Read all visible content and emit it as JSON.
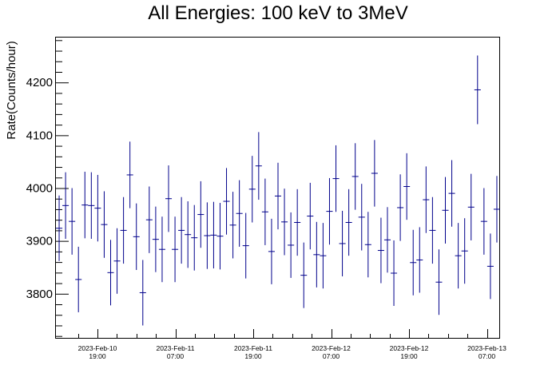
{
  "chart_data": {
    "type": "scatter",
    "title": "All Energies:  100 keV to 3MeV",
    "xlabel": "",
    "ylabel": "Rate(Counts/hour)",
    "ylim": [
      3715,
      4285
    ],
    "y_ticks": [
      3800,
      3900,
      4000,
      4100,
      4200
    ],
    "x_tick_labels": [
      {
        "date": "2023-Feb-10",
        "time": "19:00"
      },
      {
        "date": "2023-Feb-11",
        "time": "07:00"
      },
      {
        "date": "2023-Feb-11",
        "time": "19:00"
      },
      {
        "date": "2023-Feb-12",
        "time": "07:00"
      },
      {
        "date": "2023-Feb-12",
        "time": "19:00"
      },
      {
        "date": "2023-Feb-13",
        "time": "07:00"
      }
    ],
    "series": [
      {
        "color": "#00008b",
        "points": [
          {
            "y": 3924,
            "err": 62
          },
          {
            "y": 3967,
            "err": 63
          },
          {
            "y": 3937,
            "err": 63
          },
          {
            "y": 3827,
            "err": 62
          },
          {
            "y": 3968,
            "err": 63
          },
          {
            "y": 3967,
            "err": 63
          },
          {
            "y": 3962,
            "err": 63
          },
          {
            "y": 3931,
            "err": 63
          },
          {
            "y": 3840,
            "err": 62
          },
          {
            "y": 3862,
            "err": 62
          },
          {
            "y": 3920,
            "err": 63
          },
          {
            "y": 4025,
            "err": 63
          },
          {
            "y": 3908,
            "err": 63
          },
          {
            "y": 3802,
            "err": 62
          },
          {
            "y": 3940,
            "err": 63
          },
          {
            "y": 3903,
            "err": 62
          },
          {
            "y": 3884,
            "err": 62
          },
          {
            "y": 3980,
            "err": 63
          },
          {
            "y": 3884,
            "err": 62
          },
          {
            "y": 3920,
            "err": 63
          },
          {
            "y": 3912,
            "err": 63
          },
          {
            "y": 3906,
            "err": 62
          },
          {
            "y": 3950,
            "err": 63
          },
          {
            "y": 3910,
            "err": 63
          },
          {
            "y": 3911,
            "err": 63
          },
          {
            "y": 3909,
            "err": 63
          },
          {
            "y": 3975,
            "err": 63
          },
          {
            "y": 3930,
            "err": 63
          },
          {
            "y": 3952,
            "err": 63
          },
          {
            "y": 3891,
            "err": 62
          },
          {
            "y": 3998,
            "err": 63
          },
          {
            "y": 4042,
            "err": 64
          },
          {
            "y": 3955,
            "err": 63
          },
          {
            "y": 3880,
            "err": 62
          },
          {
            "y": 3985,
            "err": 63
          },
          {
            "y": 3936,
            "err": 63
          },
          {
            "y": 3892,
            "err": 62
          },
          {
            "y": 3935,
            "err": 63
          },
          {
            "y": 3835,
            "err": 62
          },
          {
            "y": 3947,
            "err": 63
          },
          {
            "y": 3874,
            "err": 62
          },
          {
            "y": 3872,
            "err": 62
          },
          {
            "y": 3956,
            "err": 63
          },
          {
            "y": 4018,
            "err": 63
          },
          {
            "y": 3895,
            "err": 62
          },
          {
            "y": 3935,
            "err": 63
          },
          {
            "y": 4022,
            "err": 63
          },
          {
            "y": 3945,
            "err": 63
          },
          {
            "y": 3893,
            "err": 62
          },
          {
            "y": 4028,
            "err": 63
          },
          {
            "y": 3882,
            "err": 62
          },
          {
            "y": 3902,
            "err": 62
          },
          {
            "y": 3839,
            "err": 62
          },
          {
            "y": 3963,
            "err": 63
          },
          {
            "y": 4003,
            "err": 63
          },
          {
            "y": 3859,
            "err": 62
          },
          {
            "y": 3864,
            "err": 62
          },
          {
            "y": 3978,
            "err": 63
          },
          {
            "y": 3920,
            "err": 63
          },
          {
            "y": 3822,
            "err": 62
          },
          {
            "y": 3958,
            "err": 63
          },
          {
            "y": 3990,
            "err": 63
          },
          {
            "y": 3872,
            "err": 62
          },
          {
            "y": 3881,
            "err": 62
          },
          {
            "y": 3964,
            "err": 63
          },
          {
            "y": 4186,
            "err": 65
          },
          {
            "y": 3937,
            "err": 63
          },
          {
            "y": 3852,
            "err": 62
          },
          {
            "y": 3960,
            "err": 63
          }
        ]
      }
    ]
  }
}
